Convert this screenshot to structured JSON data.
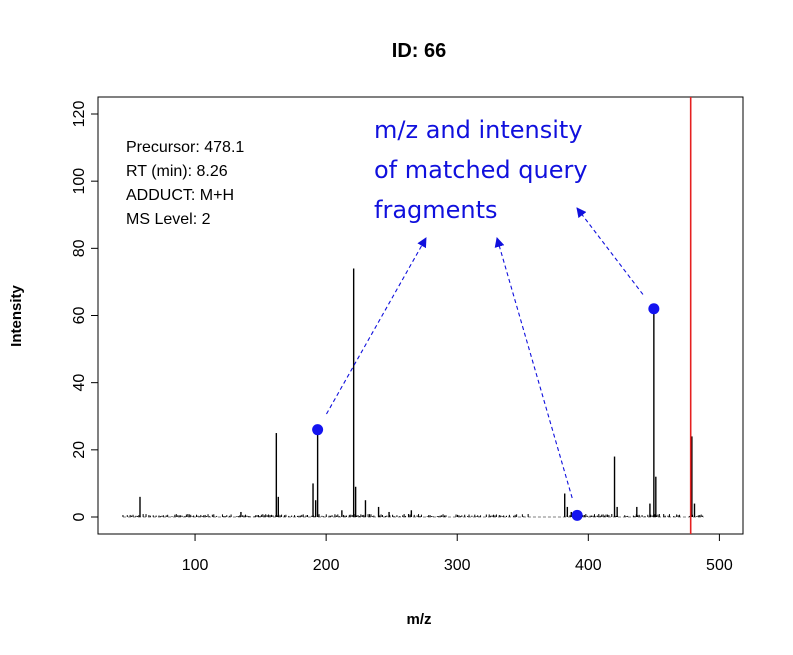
{
  "chart_data": {
    "type": "bar",
    "title": "ID: 66",
    "xlabel": "m/z",
    "ylabel": "Intensity",
    "xlim": [
      40,
      500
    ],
    "ylim": [
      0,
      120
    ],
    "xticks": [
      100,
      200,
      300,
      400,
      500
    ],
    "yticks": [
      0,
      20,
      40,
      60,
      80,
      100,
      120
    ],
    "info_lines": [
      "Precursor: 478.1",
      "RT (min): 8.26",
      "ADDUCT: M+H",
      "MS Level: 2"
    ],
    "precursor_line": {
      "mz": 478.1,
      "color": "#e52020"
    },
    "peaks": [
      {
        "mz": 58,
        "intensity": 6
      },
      {
        "mz": 135,
        "intensity": 1.5
      },
      {
        "mz": 162,
        "intensity": 25
      },
      {
        "mz": 163.5,
        "intensity": 6
      },
      {
        "mz": 190,
        "intensity": 10
      },
      {
        "mz": 192,
        "intensity": 5
      },
      {
        "mz": 193.5,
        "intensity": 26
      },
      {
        "mz": 212,
        "intensity": 2
      },
      {
        "mz": 221,
        "intensity": 74
      },
      {
        "mz": 222.5,
        "intensity": 9
      },
      {
        "mz": 230,
        "intensity": 5
      },
      {
        "mz": 240,
        "intensity": 3
      },
      {
        "mz": 248,
        "intensity": 1.5
      },
      {
        "mz": 265,
        "intensity": 2
      },
      {
        "mz": 382,
        "intensity": 7
      },
      {
        "mz": 384,
        "intensity": 3
      },
      {
        "mz": 387,
        "intensity": 1.5
      },
      {
        "mz": 420,
        "intensity": 18
      },
      {
        "mz": 422,
        "intensity": 3
      },
      {
        "mz": 437,
        "intensity": 3
      },
      {
        "mz": 447,
        "intensity": 4
      },
      {
        "mz": 450,
        "intensity": 62
      },
      {
        "mz": 451.5,
        "intensity": 12
      },
      {
        "mz": 479,
        "intensity": 24
      },
      {
        "mz": 481,
        "intensity": 4
      }
    ],
    "matched_fragments": [
      {
        "mz": 193.5,
        "intensity": 26
      },
      {
        "mz": 391.5,
        "intensity": 0.5
      },
      {
        "mz": 450,
        "intensity": 62
      }
    ],
    "matched_color": "#1414f0",
    "annotation": {
      "lines": [
        "m/z and intensity",
        "of matched query",
        "fragments"
      ],
      "color": "#1010dd"
    }
  }
}
